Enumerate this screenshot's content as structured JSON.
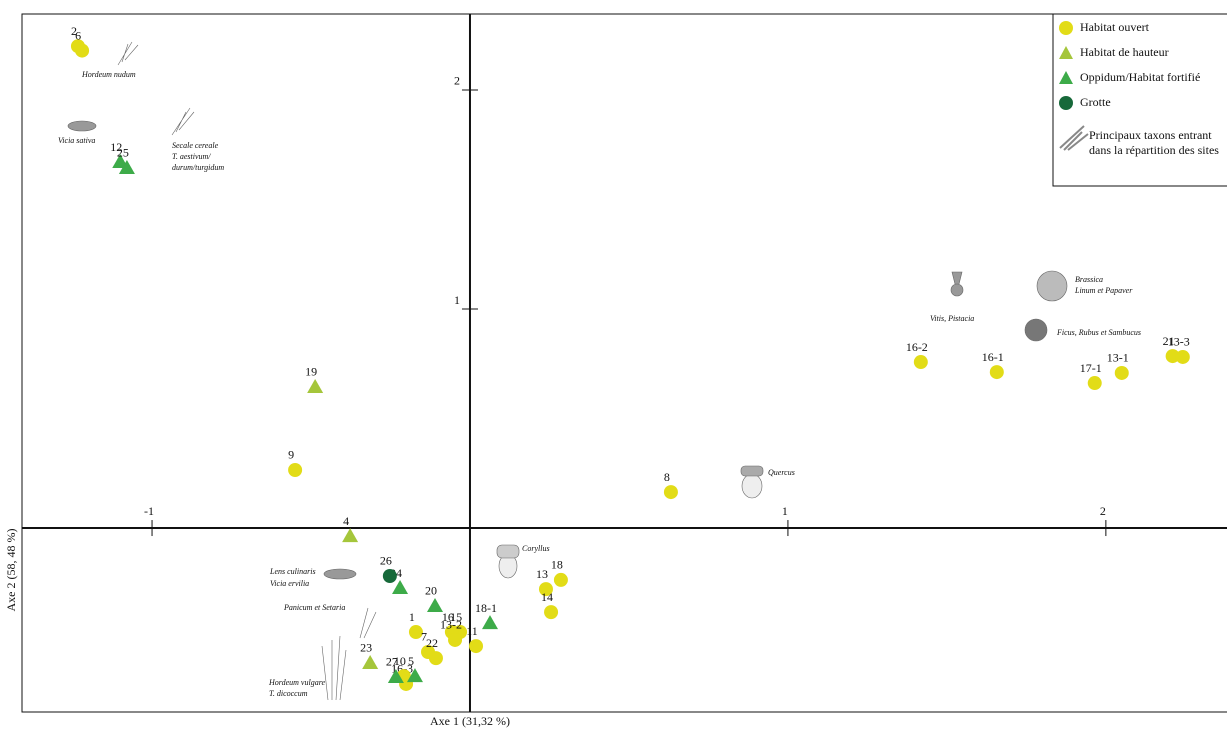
{
  "chart_data": {
    "type": "scatter",
    "xlabel": "Axe 1 (31,32 %)",
    "ylabel": "Axe 2 (58, 48 %)",
    "xlim": [
      -1.409,
      2.381
    ],
    "ylim": [
      -0.84,
      2.347
    ],
    "xticks": [
      -1,
      1,
      2
    ],
    "yticks": [
      1,
      2
    ],
    "series": [
      {
        "name": "Habitat ouvert",
        "color": "#e2dc17",
        "marker": "circle",
        "labels": [
          "2",
          "6",
          "9",
          "8",
          "16-2",
          "16-1",
          "17-1",
          "13-1",
          "21",
          "13-3",
          "13",
          "18",
          "14",
          "11",
          "15",
          "16",
          "13-2",
          "1",
          "7",
          "22",
          "16-3",
          "10"
        ],
        "x": [
          -1.233,
          -1.22,
          -0.55,
          0.632,
          1.418,
          1.657,
          1.965,
          2.05,
          2.21,
          2.242,
          0.239,
          0.286,
          0.255,
          0.019,
          -0.031,
          -0.057,
          -0.047,
          -0.17,
          -0.132,
          -0.107,
          -0.201,
          -0.208
        ],
        "values": [
          2.2,
          2.18,
          0.265,
          0.164,
          0.758,
          0.712,
          0.662,
          0.708,
          0.785,
          0.781,
          -0.279,
          -0.237,
          -0.384,
          -0.539,
          -0.475,
          -0.475,
          -0.511,
          -0.475,
          -0.566,
          -0.594,
          -0.712,
          -0.676
        ]
      },
      {
        "name": "Habitat de hauteur",
        "color": "#a5c63b",
        "marker": "triangle",
        "labels": [
          "19",
          "4",
          "23"
        ],
        "x": [
          -0.487,
          -0.377,
          -0.314
        ],
        "values": [
          0.644,
          -0.037,
          -0.616
        ]
      },
      {
        "name": "Oppidum/Habitat fortifié",
        "color": "#3dab49",
        "marker": "triangle",
        "labels": [
          "12",
          "25",
          "24",
          "20",
          "18-1",
          "27",
          "5"
        ],
        "x": [
          -1.1,
          -1.079,
          -0.22,
          -0.11,
          0.063,
          -0.233,
          -0.173
        ],
        "values": [
          1.671,
          1.644,
          -0.274,
          -0.356,
          -0.434,
          -0.68,
          -0.676
        ]
      },
      {
        "name": "Grotte",
        "color": "#17693a",
        "marker": "circle",
        "labels": [
          "26"
        ],
        "x": [
          -0.252
        ],
        "values": [
          -0.219
        ]
      }
    ],
    "taxa_legend": [
      "Principaux taxons entrant",
      "dans la répartition des sites"
    ],
    "annotations": [
      "Hordeum nudum",
      "Vicia sativa",
      "Secale cereale",
      "T. aestivum/",
      "durum/turgidum",
      "Vitis, Pistacia",
      "Brassica",
      "Linum et Papaver",
      "Ficus, Rubus et Sambucus",
      "Quercus",
      "Coryllus",
      "Lens culinaris",
      "Vicia ervilia",
      "Panicum et Setaria",
      "Hordeum vulgare",
      "T. dicoccum"
    ]
  }
}
